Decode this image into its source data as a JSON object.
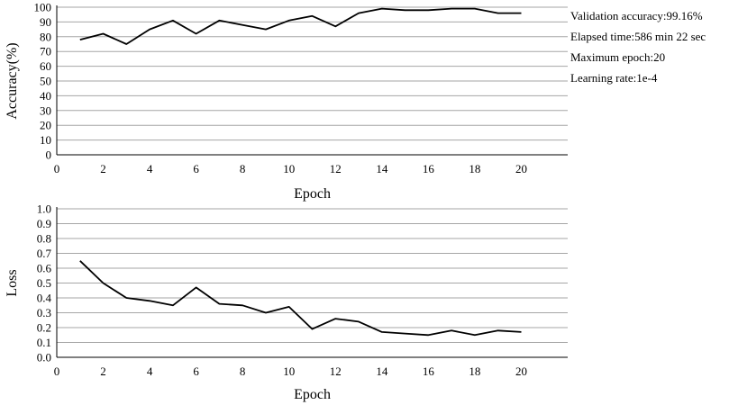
{
  "chart_data": [
    {
      "type": "line",
      "xlabel": "Epoch",
      "ylabel": "Accuracy(%)",
      "xlim": [
        0,
        22
      ],
      "ylim": [
        0,
        100
      ],
      "xticks": [
        "0",
        "2",
        "4",
        "6",
        "8",
        "10",
        "12",
        "14",
        "16",
        "18",
        "20"
      ],
      "yticks": [
        "0",
        "10",
        "20",
        "30",
        "40",
        "50",
        "60",
        "70",
        "80",
        "90",
        "100"
      ],
      "grid": true,
      "series": [
        {
          "x": [
            1,
            2,
            3,
            4,
            5,
            6,
            7,
            8,
            9,
            10,
            11,
            12,
            13,
            14,
            15,
            16,
            17,
            18,
            19,
            20
          ],
          "values": [
            78,
            82,
            75,
            85,
            91,
            82,
            91,
            88,
            85,
            91,
            94,
            87,
            96,
            99,
            98,
            98,
            99,
            99,
            96,
            96
          ]
        }
      ]
    },
    {
      "type": "line",
      "xlabel": "Epoch",
      "ylabel": "Loss",
      "xlim": [
        0,
        22
      ],
      "ylim": [
        0,
        1.0
      ],
      "xticks": [
        "0",
        "2",
        "4",
        "6",
        "8",
        "10",
        "12",
        "14",
        "16",
        "18",
        "20"
      ],
      "yticks": [
        "0.0",
        "0.1",
        "0.2",
        "0.3",
        "0.4",
        "0.5",
        "0.6",
        "0.7",
        "0.8",
        "0.9",
        "1.0"
      ],
      "grid": true,
      "series": [
        {
          "x": [
            1,
            2,
            3,
            4,
            5,
            6,
            7,
            8,
            9,
            10,
            11,
            12,
            13,
            14,
            15,
            16,
            17,
            18,
            19,
            20
          ],
          "values": [
            0.65,
            0.5,
            0.4,
            0.38,
            0.35,
            0.47,
            0.36,
            0.35,
            0.3,
            0.34,
            0.19,
            0.26,
            0.24,
            0.17,
            0.16,
            0.15,
            0.18,
            0.15,
            0.18,
            0.17
          ]
        }
      ]
    }
  ],
  "info": {
    "validation_accuracy": "Validation accuracy:99.16%",
    "elapsed_time": "Elapsed time:586 min 22 sec",
    "maximum_epoch": "Maximum epoch:20",
    "learning_rate": "Learning rate:1e-4"
  }
}
